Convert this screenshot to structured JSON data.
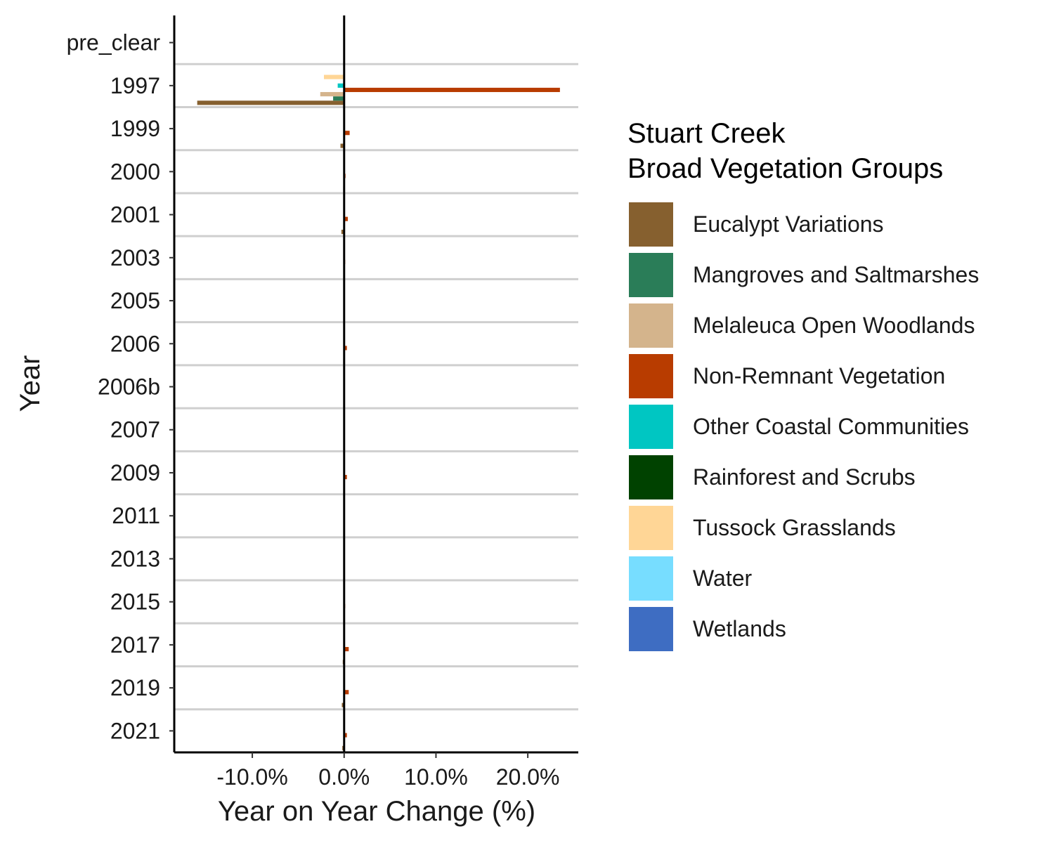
{
  "chart_data": {
    "type": "bar",
    "orientation": "horizontal",
    "title": "",
    "xlabel": "Year on Year Change (%)",
    "ylabel": "Year",
    "xlim": [
      -18.5,
      25.5
    ],
    "x_ticks": [
      -10,
      0,
      10,
      20
    ],
    "x_tick_labels": [
      "-10.0%",
      "0.0%",
      "10.0%",
      "20.0%"
    ],
    "grid": "horizontal separators between categories",
    "categories": [
      "pre_clear",
      "1997",
      "1999",
      "2000",
      "2001",
      "2003",
      "2005",
      "2006",
      "2006b",
      "2007",
      "2009",
      "2011",
      "2013",
      "2015",
      "2017",
      "2019",
      "2021"
    ],
    "legend": {
      "title_lines": [
        "Stuart Creek",
        "Broad Vegetation Groups"
      ],
      "placement": "right"
    },
    "series": [
      {
        "name": "Eucalypt Variations",
        "color": "#86602F",
        "values": [
          null,
          -16.0,
          -0.4,
          -0.1,
          -0.3,
          -0.05,
          null,
          -0.1,
          null,
          null,
          -0.05,
          null,
          null,
          -0.05,
          -0.15,
          -0.25,
          -0.2
        ]
      },
      {
        "name": "Mangroves and Saltmarshes",
        "color": "#2A7D58",
        "values": [
          null,
          -1.2,
          null,
          null,
          null,
          null,
          null,
          null,
          null,
          null,
          null,
          null,
          null,
          null,
          null,
          null,
          null
        ]
      },
      {
        "name": "Melaleuca Open Woodlands",
        "color": "#D4B48C",
        "values": [
          null,
          -2.6,
          null,
          null,
          null,
          null,
          null,
          null,
          null,
          null,
          null,
          null,
          null,
          null,
          -0.1,
          null,
          null
        ]
      },
      {
        "name": "Non-Remnant Vegetation",
        "color": "#B83C00",
        "values": [
          null,
          23.5,
          0.6,
          0.15,
          0.4,
          0.1,
          null,
          0.3,
          null,
          null,
          0.3,
          null,
          null,
          0.1,
          0.5,
          0.5,
          0.3
        ]
      },
      {
        "name": "Other Coastal Communities",
        "color": "#00C6C2",
        "values": [
          null,
          -0.7,
          null,
          null,
          null,
          null,
          null,
          null,
          null,
          null,
          null,
          null,
          null,
          null,
          null,
          null,
          null
        ]
      },
      {
        "name": "Rainforest and Scrubs",
        "color": "#004200",
        "values": [
          null,
          null,
          null,
          null,
          null,
          null,
          null,
          null,
          null,
          null,
          null,
          null,
          null,
          null,
          null,
          null,
          null
        ]
      },
      {
        "name": "Tussock Grasslands",
        "color": "#FFD696",
        "values": [
          null,
          -2.2,
          null,
          null,
          null,
          null,
          null,
          null,
          null,
          null,
          null,
          null,
          null,
          null,
          null,
          null,
          null
        ]
      },
      {
        "name": "Water",
        "color": "#77DDFF",
        "values": [
          null,
          null,
          null,
          null,
          null,
          null,
          null,
          null,
          null,
          null,
          null,
          null,
          null,
          null,
          null,
          null,
          null
        ]
      },
      {
        "name": "Wetlands",
        "color": "#3E6DC2",
        "values": [
          null,
          null,
          null,
          null,
          null,
          null,
          null,
          null,
          null,
          null,
          null,
          null,
          null,
          null,
          null,
          null,
          null
        ]
      }
    ]
  }
}
